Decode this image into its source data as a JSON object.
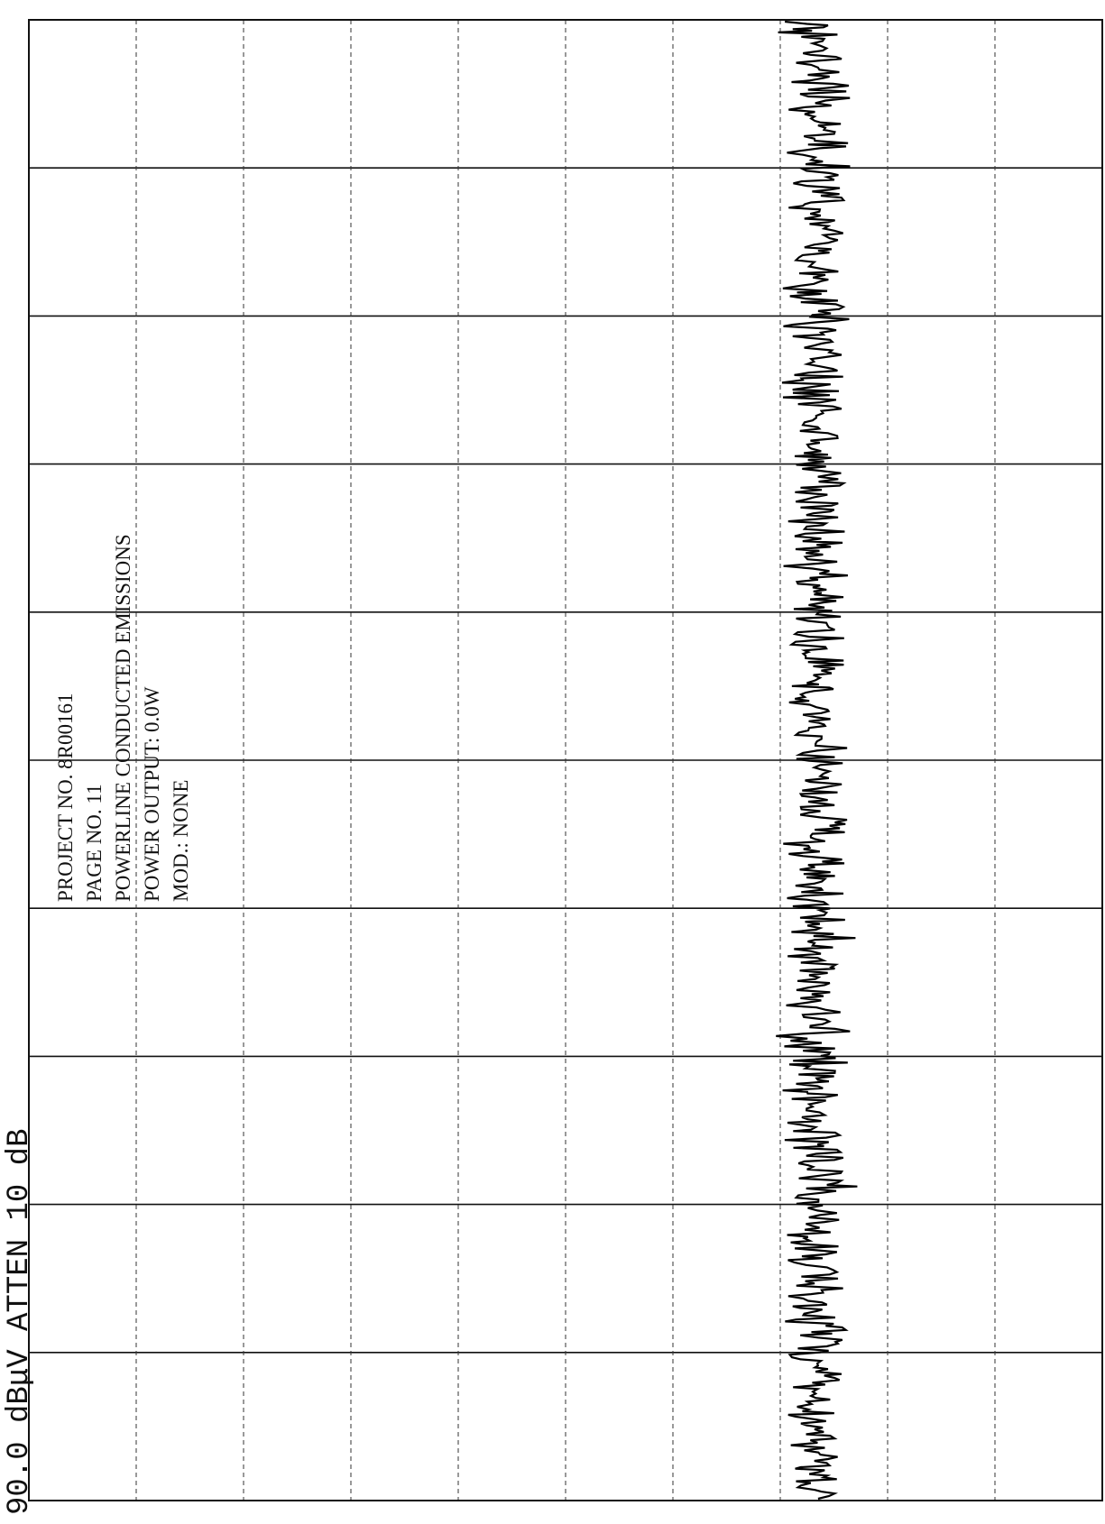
{
  "header": {
    "scale_label": "90.0 dBμV  ATTEN 10 dB"
  },
  "annotation": {
    "lines": [
      "PROJECT NO. 8R00161",
      "PAGE NO. 11",
      "POWERLINE CONDUCTED EMISSIONS",
      "POWER OUTPUT: 0.0W",
      "MOD.: NONE"
    ]
  }
}
